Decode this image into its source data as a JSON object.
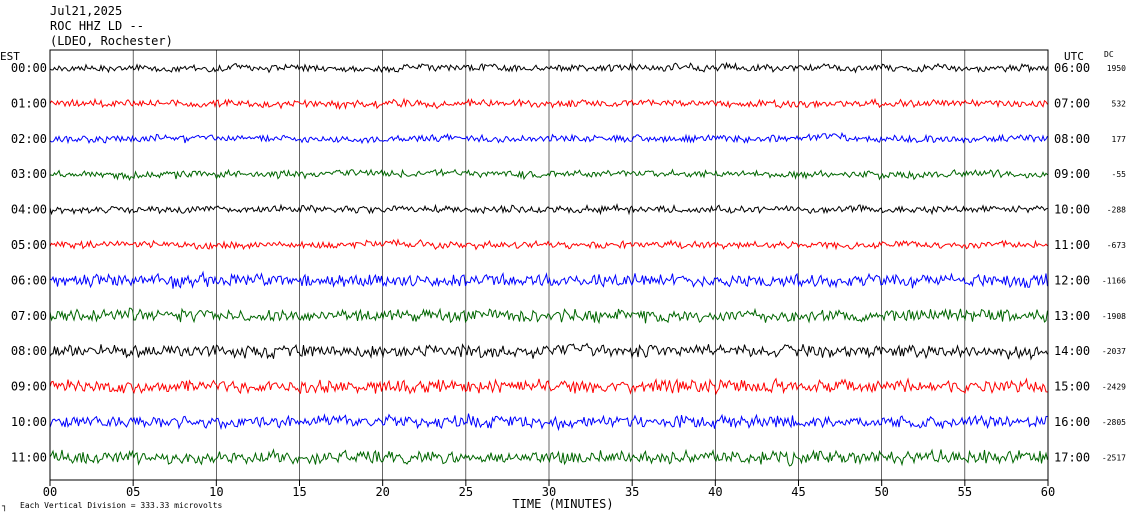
{
  "header": {
    "date": "Jul21,2025",
    "station": "ROC HHZ LD --",
    "network": "(LDEO, Rochester)"
  },
  "left_axis_label": "EST",
  "right_axis_label": "UTC",
  "dc_label": "DC",
  "footer": {
    "scale_mark": "┐",
    "scale_note": "Each Vertical Division =  333.33 microvolts"
  },
  "chart_data": {
    "type": "line",
    "xlabel": "TIME (MINUTES)",
    "xlim": [
      0,
      60
    ],
    "x_ticks": [
      "00",
      "05",
      "10",
      "15",
      "20",
      "25",
      "30",
      "35",
      "40",
      "45",
      "50",
      "55",
      "60"
    ],
    "trace_colors": [
      "#000000",
      "#ff0000",
      "#0000ff",
      "#006600"
    ],
    "rows": [
      {
        "est": "00:00",
        "utc": "06:00",
        "dc": "1950"
      },
      {
        "est": "01:00",
        "utc": "07:00",
        "dc": "532"
      },
      {
        "est": "02:00",
        "utc": "08:00",
        "dc": "177"
      },
      {
        "est": "03:00",
        "utc": "09:00",
        "dc": "-55"
      },
      {
        "est": "04:00",
        "utc": "10:00",
        "dc": "-288"
      },
      {
        "est": "05:00",
        "utc": "11:00",
        "dc": "-673"
      },
      {
        "est": "06:00",
        "utc": "12:00",
        "dc": "-1166"
      },
      {
        "est": "07:00",
        "utc": "13:00",
        "dc": "-1908"
      },
      {
        "est": "08:00",
        "utc": "14:00",
        "dc": "-2037"
      },
      {
        "est": "09:00",
        "utc": "15:00",
        "dc": "-2429"
      },
      {
        "est": "10:00",
        "utc": "16:00",
        "dc": "-2805"
      },
      {
        "est": "11:00",
        "utc": "17:00",
        "dc": "-2517"
      }
    ]
  }
}
